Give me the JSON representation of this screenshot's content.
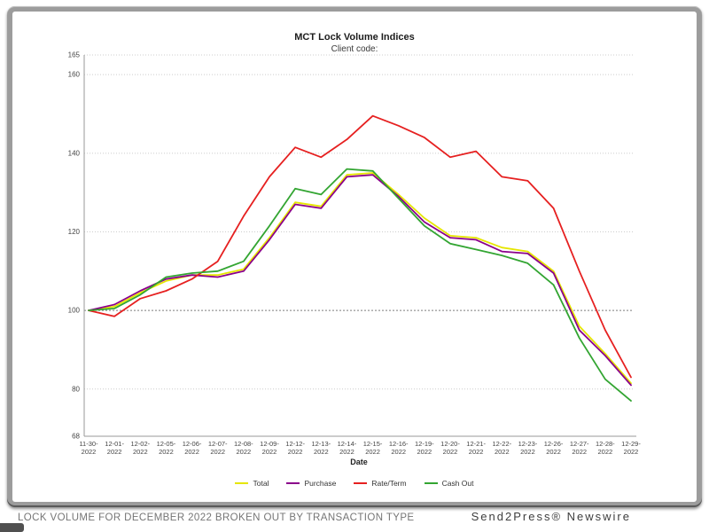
{
  "chart_data": {
    "type": "line",
    "title": "MCT Lock Volume Indices",
    "subtitle": "Client code:",
    "xlabel": "Date",
    "x_tick_labels": [
      "11-30-2022",
      "12-01-2022",
      "12-02-2022",
      "12-05-2022",
      "12-06-2022",
      "12-07-2022",
      "12-08-2022",
      "12-09-2022",
      "12-12-2022",
      "12-13-2022",
      "12-14-2022",
      "12-15-2022",
      "12-16-2022",
      "12-19-2022",
      "12-20-2022",
      "12-21-2022",
      "12-22-2022",
      "12-23-2022",
      "12-26-2022",
      "12-27-2022",
      "12-28-2022",
      "12-29-2022"
    ],
    "y_ticks": [
      68,
      80,
      100,
      120,
      140,
      160,
      165
    ],
    "gridline_ticks": [
      80,
      100,
      120,
      140,
      160,
      165
    ],
    "ylim": [
      68,
      165
    ],
    "reference_line": 100,
    "grid": "horizontal-dotted",
    "legend_position": "bottom",
    "series": [
      {
        "name": "Total",
        "color": "#e6e600",
        "values": [
          100,
          101,
          104.5,
          107.5,
          109,
          109,
          110.5,
          118.5,
          127.5,
          126.5,
          134.5,
          135,
          129.5,
          123.5,
          119,
          118.5,
          116,
          115,
          110,
          96,
          89,
          81.5
        ]
      },
      {
        "name": "Purchase",
        "color": "#8b008b",
        "values": [
          100,
          101.5,
          105,
          108,
          109,
          108.5,
          110,
          118,
          127,
          126,
          134,
          134.5,
          129,
          122.5,
          118.5,
          118,
          115,
          114.5,
          109.5,
          95,
          88.5,
          81
        ]
      },
      {
        "name": "Rate/Term",
        "color": "#e62020",
        "values": [
          100,
          98.5,
          103,
          105,
          108,
          112.5,
          124,
          134,
          141.5,
          139,
          143.5,
          149.5,
          147,
          144,
          139,
          140.5,
          134,
          133,
          126,
          110,
          95,
          83
        ]
      },
      {
        "name": "Cash Out",
        "color": "#33a532",
        "values": [
          100,
          100.5,
          104,
          108.5,
          109.5,
          110,
          112.5,
          121.5,
          131,
          129.5,
          136,
          135.5,
          128.5,
          121.5,
          117,
          115.5,
          114,
          112,
          106.5,
          93,
          82.5,
          77
        ]
      }
    ],
    "style": {
      "grid_color": "#cccccc",
      "reference_line_color": "#7d7d7d",
      "axis_color": "#9a9a9a",
      "tick_text_color": "#444444"
    }
  },
  "footer": {
    "caption": "LOCK VOLUME FOR DECEMBER 2022 BROKEN OUT BY TRANSACTION TYPE",
    "credit": "Send2Press® Newswire"
  }
}
